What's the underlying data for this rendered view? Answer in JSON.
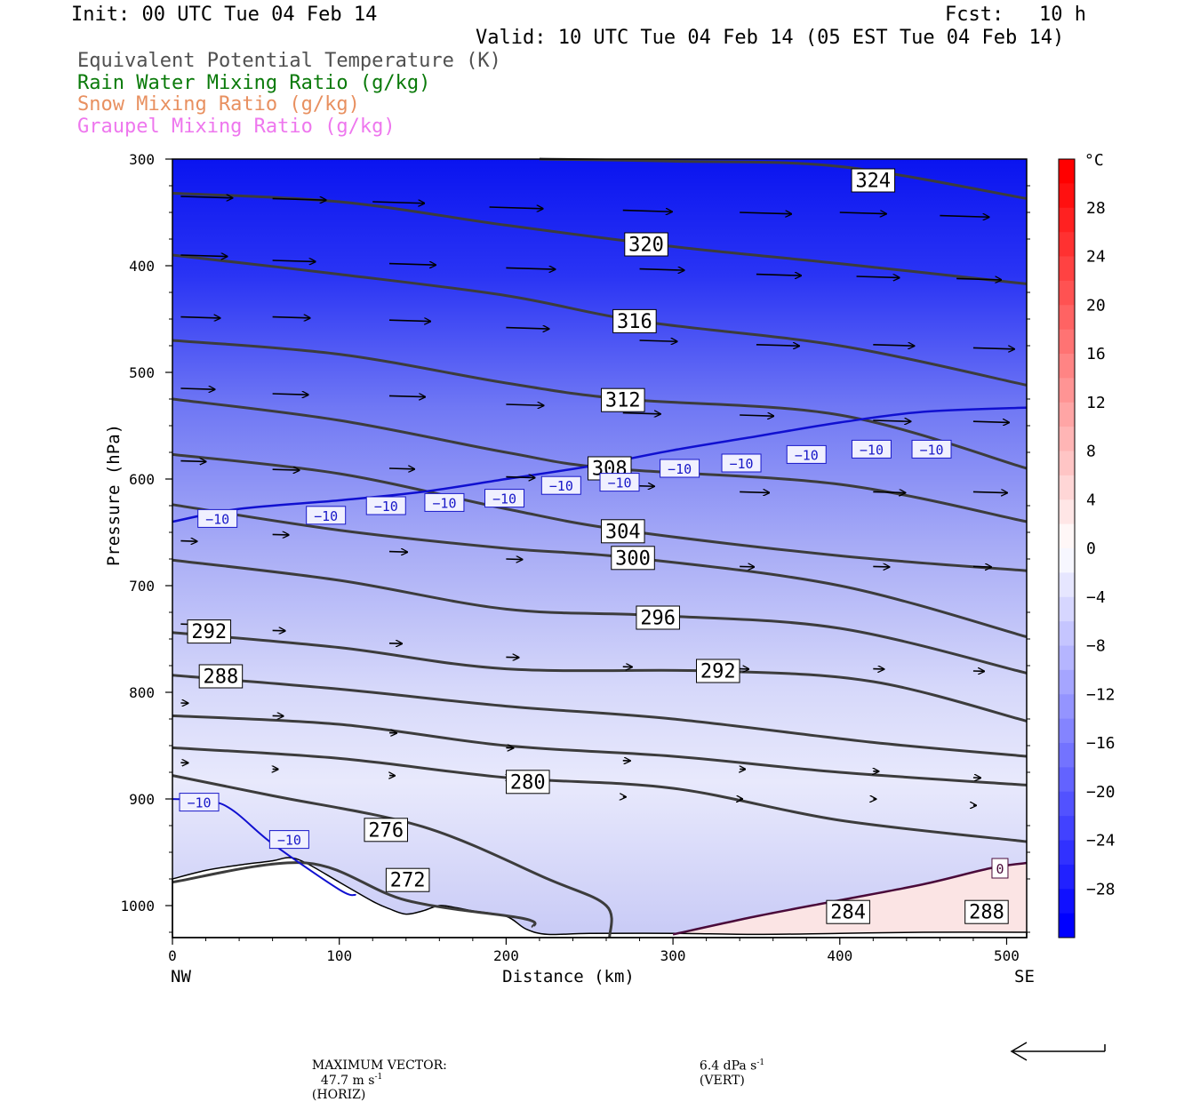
{
  "header": {
    "init": "Init: 00 UTC Tue 04 Feb 14",
    "fcst": "Fcst:   10 h",
    "valid": "Valid: 10 UTC Tue 04 Feb 14 (05 EST Tue 04 Feb 14)"
  },
  "legend": [
    {
      "label": "Equivalent Potential Temperature (K)",
      "color": "#505050"
    },
    {
      "label": "Rain Water Mixing Ratio (g/kg)",
      "color": "#0a7a0a"
    },
    {
      "label": "Snow Mixing Ratio (g/kg)",
      "color": "#e89060"
    },
    {
      "label": "Graupel Mixing Ratio (g/kg)",
      "color": "#ee77ee"
    }
  ],
  "footer": {
    "max_vector_label": "MAXIMUM VECTOR:",
    "horiz_value": "47.7 m s",
    "horiz_exp": "-1",
    "horiz_unit": "(HORIZ)",
    "vert_value": "6.4 dPa s",
    "vert_exp": "-1",
    "vert_unit": "(VERT)"
  },
  "chart_data": {
    "type": "cross-section",
    "ylabel": "Pressure (hPa)",
    "xlabel": "Distance (km)",
    "x_ticks": [
      0,
      100,
      200,
      300,
      400,
      500
    ],
    "y_ticks": [
      300,
      400,
      500,
      600,
      700,
      800,
      900,
      1000
    ],
    "xlim": [
      0,
      512
    ],
    "ylim": [
      300,
      1030
    ],
    "x_end_labels": {
      "left": "NW",
      "right": "SE"
    },
    "colorbar": {
      "unit": "°C",
      "ticks": [
        28,
        24,
        20,
        16,
        12,
        8,
        4,
        0,
        -4,
        -8,
        -12,
        -16,
        -20,
        -24,
        -28
      ],
      "tick_labels": [
        "28",
        "24",
        "20",
        "16",
        "12",
        "8",
        "4",
        "0",
        "−4",
        "−8",
        "−12",
        "−16",
        "−20",
        "−24",
        "−28"
      ],
      "range": [
        -32,
        32
      ],
      "cold_color": "#0000ff",
      "warm_color": "#ff0000"
    },
    "theta_e_contours": [
      {
        "value": 324,
        "label": "324",
        "points": [
          [
            220,
            300
          ],
          [
            300,
            302
          ],
          [
            400,
            307
          ],
          [
            512,
            337
          ]
        ],
        "label_at": [
          420,
          320
        ]
      },
      {
        "value": 320,
        "label": "320",
        "points": [
          [
            0,
            332
          ],
          [
            100,
            340
          ],
          [
            200,
            362
          ],
          [
            300,
            382
          ],
          [
            400,
            398
          ],
          [
            512,
            417
          ]
        ],
        "label_at": [
          284,
          380
        ]
      },
      {
        "value": 316,
        "label": "316",
        "points": [
          [
            0,
            390
          ],
          [
            100,
            408
          ],
          [
            200,
            428
          ],
          [
            280,
            452
          ],
          [
            400,
            475
          ],
          [
            512,
            512
          ]
        ],
        "label_at": [
          277,
          452
        ]
      },
      {
        "value": 312,
        "label": "312",
        "points": [
          [
            0,
            470
          ],
          [
            100,
            483
          ],
          [
            200,
            510
          ],
          [
            270,
            525
          ],
          [
            400,
            540
          ],
          [
            512,
            590
          ]
        ],
        "label_at": [
          270,
          526
        ]
      },
      {
        "value": 308,
        "label": "308",
        "points": [
          [
            0,
            525
          ],
          [
            100,
            545
          ],
          [
            200,
            575
          ],
          [
            262,
            590
          ],
          [
            400,
            605
          ],
          [
            512,
            640
          ]
        ],
        "label_at": [
          262,
          590
        ]
      },
      {
        "value": 304,
        "label": "304",
        "points": [
          [
            0,
            577
          ],
          [
            100,
            595
          ],
          [
            200,
            628
          ],
          [
            270,
            648
          ],
          [
            400,
            672
          ],
          [
            512,
            686
          ]
        ],
        "label_at": [
          270,
          649
        ]
      },
      {
        "value": 300,
        "label": "300",
        "points": [
          [
            0,
            624
          ],
          [
            100,
            648
          ],
          [
            200,
            665
          ],
          [
            276,
            674
          ],
          [
            400,
            700
          ],
          [
            512,
            748
          ]
        ],
        "label_at": [
          276,
          674
        ]
      },
      {
        "value": 296,
        "label": "296",
        "points": [
          [
            0,
            676
          ],
          [
            100,
            695
          ],
          [
            200,
            722
          ],
          [
            290,
            728
          ],
          [
            400,
            740
          ],
          [
            512,
            782
          ]
        ],
        "label_at": [
          291,
          730
        ]
      },
      {
        "value": 292,
        "label": "292",
        "points": [
          [
            0,
            744
          ],
          [
            100,
            758
          ],
          [
            200,
            778
          ],
          [
            325,
            780
          ],
          [
            420,
            790
          ],
          [
            512,
            827
          ]
        ],
        "label_at": [
          327,
          780
        ]
      },
      {
        "value": 288,
        "label": "288",
        "points": [
          [
            0,
            784
          ],
          [
            100,
            797
          ],
          [
            200,
            813
          ],
          [
            300,
            825
          ],
          [
            420,
            847
          ],
          [
            512,
            860
          ]
        ],
        "label_at": [
          29,
          785
        ]
      },
      {
        "value": 284,
        "label": "284",
        "points": [
          [
            0,
            822
          ],
          [
            100,
            830
          ],
          [
            200,
            850
          ],
          [
            300,
            860
          ],
          [
            400,
            875
          ],
          [
            512,
            887
          ]
        ],
        "label_at": [
          405,
          1006
        ]
      },
      {
        "value": 280,
        "label": "280",
        "points": [
          [
            0,
            852
          ],
          [
            100,
            862
          ],
          [
            200,
            880
          ],
          [
            300,
            890
          ],
          [
            400,
            920
          ],
          [
            512,
            940
          ]
        ],
        "label_at": [
          213,
          884
        ]
      },
      {
        "value": 276,
        "label": "276",
        "points": [
          [
            0,
            878
          ],
          [
            60,
            897
          ],
          [
            150,
            926
          ],
          [
            225,
            975
          ],
          [
            260,
            1000
          ],
          [
            262,
            1030
          ]
        ],
        "label_at": [
          128,
          929
        ]
      },
      {
        "value": 272,
        "label": "272",
        "points": [
          [
            0,
            978
          ],
          [
            80,
            960
          ],
          [
            140,
            995
          ],
          [
            210,
            1012
          ],
          [
            216,
            1020
          ]
        ],
        "label_at": [
          141,
          976
        ]
      }
    ],
    "contour_labels_extra": [
      {
        "label": "292",
        "at": [
          22,
          743
        ]
      },
      {
        "label": "288",
        "at": [
          488,
          1006
        ]
      }
    ],
    "isotherm_minus10": {
      "label": "−10",
      "points": [
        [
          0,
          640
        ],
        [
          40,
          628
        ],
        [
          100,
          620
        ],
        [
          150,
          612
        ],
        [
          200,
          600
        ],
        [
          250,
          588
        ],
        [
          300,
          573
        ],
        [
          350,
          560
        ],
        [
          400,
          547
        ],
        [
          450,
          537
        ],
        [
          512,
          533
        ]
      ],
      "low_points": [
        [
          0,
          900
        ],
        [
          30,
          905
        ],
        [
          60,
          942
        ],
        [
          100,
          985
        ],
        [
          110,
          990
        ]
      ],
      "labels_at": [
        [
          27,
          637
        ],
        [
          92,
          634
        ],
        [
          128,
          625
        ],
        [
          163,
          622
        ],
        [
          199,
          618
        ],
        [
          233,
          606
        ],
        [
          268,
          603
        ],
        [
          304,
          590
        ],
        [
          341,
          585
        ],
        [
          380,
          577
        ],
        [
          419,
          572
        ],
        [
          455,
          572
        ],
        [
          16,
          903
        ],
        [
          70,
          938
        ]
      ]
    },
    "isotherm_zero": {
      "label": "0",
      "points": [
        [
          300,
          1027
        ],
        [
          350,
          1010
        ],
        [
          400,
          995
        ],
        [
          450,
          980
        ],
        [
          490,
          965
        ],
        [
          512,
          960
        ]
      ],
      "label_at": [
        496,
        965
      ]
    },
    "wind_vectors": [
      [
        5,
        335,
        58
      ],
      [
        60,
        337,
        60
      ],
      [
        120,
        340,
        58
      ],
      [
        190,
        345,
        60
      ],
      [
        270,
        348,
        55
      ],
      [
        340,
        350,
        58
      ],
      [
        400,
        350,
        52
      ],
      [
        460,
        353,
        55
      ],
      [
        520,
        355,
        55
      ],
      [
        5,
        390,
        52
      ],
      [
        60,
        395,
        48
      ],
      [
        130,
        398,
        52
      ],
      [
        200,
        402,
        55
      ],
      [
        280,
        403,
        50
      ],
      [
        350,
        408,
        50
      ],
      [
        410,
        410,
        48
      ],
      [
        470,
        412,
        50
      ],
      [
        540,
        413,
        50
      ],
      [
        5,
        448,
        44
      ],
      [
        60,
        448,
        42
      ],
      [
        130,
        451,
        46
      ],
      [
        200,
        458,
        48
      ],
      [
        280,
        470,
        42
      ],
      [
        350,
        474,
        48
      ],
      [
        420,
        474,
        46
      ],
      [
        480,
        477,
        46
      ],
      [
        540,
        478,
        46
      ],
      [
        5,
        515,
        38
      ],
      [
        60,
        520,
        40
      ],
      [
        130,
        522,
        40
      ],
      [
        200,
        530,
        42
      ],
      [
        270,
        538,
        42
      ],
      [
        340,
        540,
        38
      ],
      [
        420,
        545,
        42
      ],
      [
        480,
        546,
        40
      ],
      [
        540,
        546,
        40
      ],
      [
        5,
        583,
        28
      ],
      [
        60,
        591,
        30
      ],
      [
        130,
        590,
        28
      ],
      [
        200,
        598,
        32
      ],
      [
        270,
        606,
        35
      ],
      [
        340,
        612,
        33
      ],
      [
        420,
        612,
        36
      ],
      [
        480,
        612,
        38
      ],
      [
        540,
        614,
        35
      ],
      [
        5,
        658,
        18
      ],
      [
        60,
        652,
        18
      ],
      [
        130,
        668,
        20
      ],
      [
        200,
        675,
        18
      ],
      [
        270,
        680,
        16
      ],
      [
        340,
        682,
        16
      ],
      [
        420,
        682,
        18
      ],
      [
        480,
        682,
        20
      ],
      [
        540,
        686,
        18
      ],
      [
        5,
        736,
        14
      ],
      [
        60,
        742,
        14
      ],
      [
        130,
        754,
        14
      ],
      [
        200,
        767,
        14
      ],
      [
        270,
        776,
        10
      ],
      [
        340,
        778,
        10
      ],
      [
        420,
        778,
        12
      ],
      [
        480,
        780,
        12
      ],
      [
        540,
        785,
        10
      ],
      [
        5,
        810,
        8
      ],
      [
        60,
        822,
        12
      ],
      [
        130,
        838,
        8
      ],
      [
        200,
        852,
        8
      ],
      [
        270,
        864,
        8
      ],
      [
        340,
        872,
        6
      ],
      [
        420,
        874,
        6
      ],
      [
        480,
        880,
        8
      ],
      [
        540,
        886,
        6
      ],
      [
        5,
        866,
        8
      ],
      [
        60,
        872,
        6
      ],
      [
        130,
        878,
        6
      ],
      [
        200,
        880,
        6
      ],
      [
        270,
        898,
        3
      ],
      [
        340,
        900,
        3
      ],
      [
        420,
        900,
        3
      ],
      [
        480,
        906,
        3
      ],
      [
        540,
        906,
        3
      ]
    ]
  }
}
